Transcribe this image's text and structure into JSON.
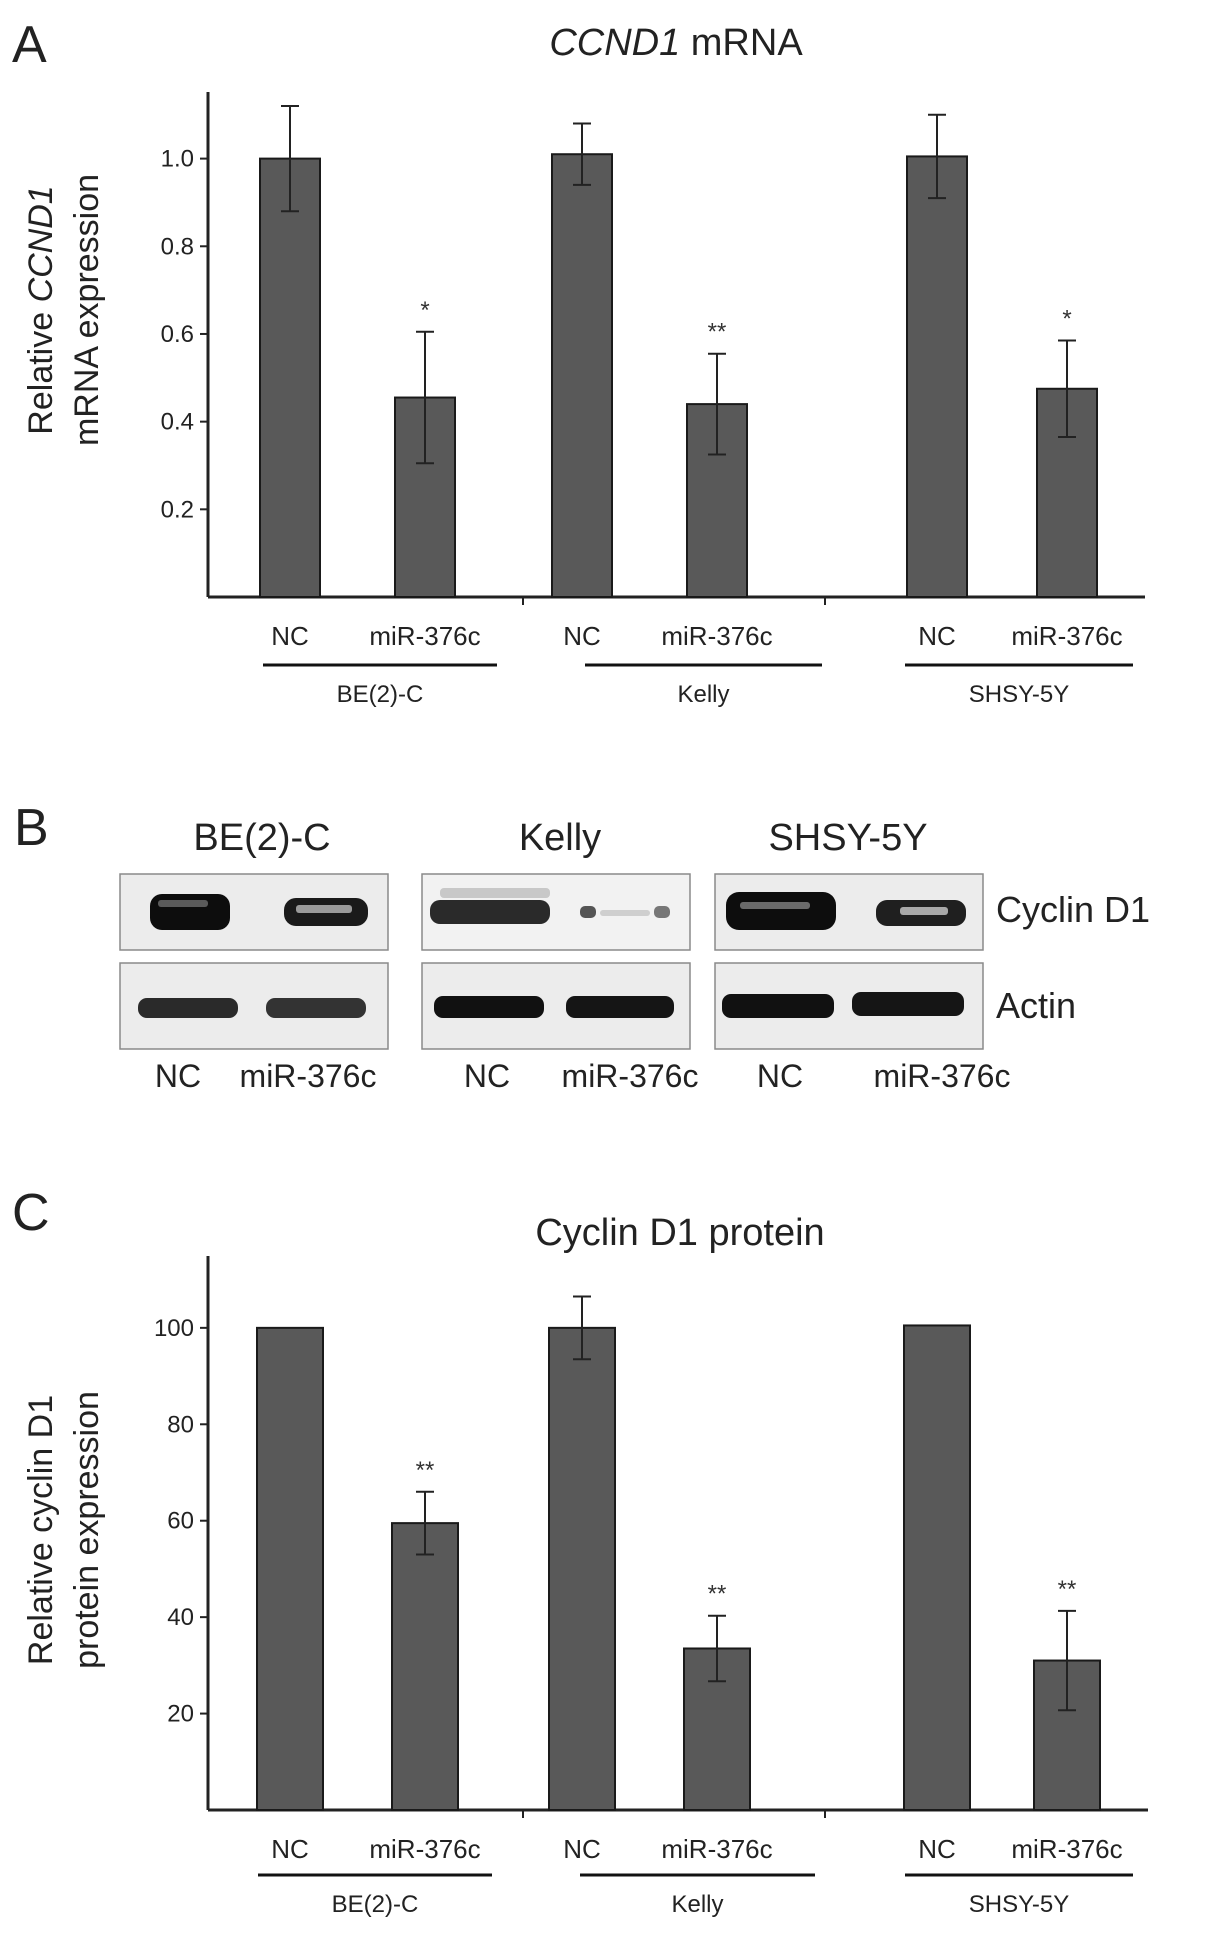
{
  "panels": {
    "a": "A",
    "b": "B",
    "c": "C"
  },
  "chart_data": [
    {
      "type": "bar",
      "title_italic": "CCND1",
      "title_rest": " mRNA",
      "ylabel_line1_plain": "Relative ",
      "ylabel_line1_italic": "CCND1",
      "ylabel_line2": "mRNA expression",
      "ylim": [
        0,
        1.12
      ],
      "yticks": [
        "0.2",
        "0.4",
        "0.6",
        "0.8",
        "1.0"
      ],
      "ytick_values": [
        0.2,
        0.4,
        0.6,
        0.8,
        1.0
      ],
      "groups": [
        "BE(2)-C",
        "Kelly",
        "SHSY-5Y"
      ],
      "categories": [
        "NC",
        "miR-376c",
        "NC",
        "miR-376c",
        "NC",
        "miR-376c"
      ],
      "values": [
        1.0,
        0.455,
        1.01,
        0.44,
        1.005,
        0.475
      ],
      "errors": [
        0.12,
        0.15,
        0.07,
        0.115,
        0.095,
        0.11
      ],
      "significance": [
        "",
        "*",
        "",
        "**",
        "",
        "*"
      ],
      "bar_color": "#595959"
    },
    {
      "type": "bar",
      "title": "Cyclin D1 protein",
      "ylabel_line1": "Relative cyclin D1",
      "ylabel_line2": "protein expression",
      "ylim": [
        0,
        112
      ],
      "yticks": [
        "20",
        "40",
        "60",
        "80",
        "100"
      ],
      "ytick_values": [
        20,
        40,
        60,
        80,
        100
      ],
      "groups": [
        "BE(2)-C",
        "Kelly",
        "SHSY-5Y"
      ],
      "categories": [
        "NC",
        "miR-376c",
        "NC",
        "miR-376c",
        "NC",
        "miR-376c"
      ],
      "values": [
        100,
        59.5,
        100,
        33.5,
        100.5,
        31
      ],
      "errors": [
        0,
        6.5,
        6.5,
        6.8,
        0,
        10.3
      ],
      "significance": [
        "",
        "**",
        "",
        "**",
        "",
        "**"
      ],
      "bar_color": "#595959"
    }
  ],
  "blot": {
    "cell_lines": [
      "BE(2)-C",
      "Kelly",
      "SHSY-5Y"
    ],
    "rows": [
      "Cyclin D1",
      "Actin"
    ],
    "lanes": [
      "NC",
      "miR-376c",
      "NC",
      "miR-376c",
      "NC",
      "miR-376c"
    ]
  }
}
